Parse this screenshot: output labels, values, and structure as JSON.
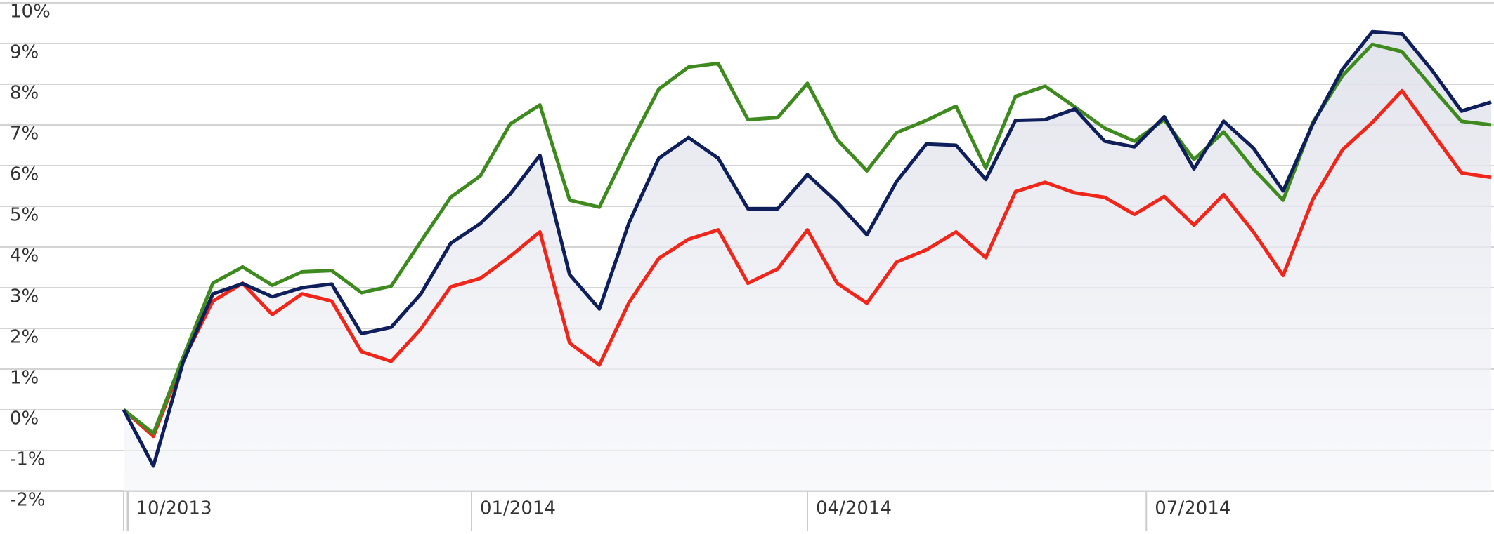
{
  "chart_data": {
    "type": "line",
    "x": [
      0,
      1,
      2,
      3,
      4,
      5,
      6,
      7,
      8,
      9,
      10,
      11,
      12,
      13,
      14,
      15,
      16,
      17,
      18,
      19,
      20,
      21,
      22,
      23,
      24,
      25,
      26,
      27,
      28,
      29,
      30,
      31,
      32,
      33,
      34,
      35,
      36,
      37,
      38,
      39,
      40,
      41,
      42,
      43,
      44,
      45,
      46
    ],
    "xlim": [
      0,
      46
    ],
    "xticks": [
      {
        "value": 0.13,
        "label": "10/2013"
      },
      {
        "value": 11.7,
        "label": "01/2014"
      },
      {
        "value": 23.0,
        "label": "04/2014"
      },
      {
        "value": 34.4,
        "label": "07/2014"
      }
    ],
    "ylim": [
      -2,
      10
    ],
    "yticks": [
      {
        "value": -2,
        "label": "-2%"
      },
      {
        "value": -1,
        "label": "-1%"
      },
      {
        "value": 0,
        "label": "0%"
      },
      {
        "value": 1,
        "label": "1%"
      },
      {
        "value": 2,
        "label": "2%"
      },
      {
        "value": 3,
        "label": "3%"
      },
      {
        "value": 4,
        "label": "4%"
      },
      {
        "value": 5,
        "label": "5%"
      },
      {
        "value": 6,
        "label": "6%"
      },
      {
        "value": 7,
        "label": "7%"
      },
      {
        "value": 8,
        "label": "8%"
      },
      {
        "value": 9,
        "label": "9%"
      },
      {
        "value": 10,
        "label": "10%"
      }
    ],
    "grid": true,
    "series": [
      {
        "color": "#0f1f5c",
        "area": true,
        "values": [
          0,
          -1.38,
          1.17,
          2.85,
          3.1,
          2.78,
          3.0,
          3.09,
          1.87,
          2.03,
          2.85,
          4.09,
          4.58,
          5.3,
          6.25,
          3.32,
          2.48,
          4.6,
          6.18,
          6.69,
          6.18,
          4.94,
          4.94,
          5.78,
          5.1,
          4.3,
          5.61,
          6.53,
          6.5,
          5.66,
          7.11,
          7.13,
          7.39,
          6.6,
          6.46,
          7.2,
          5.92,
          7.09,
          6.43,
          5.38,
          7.02,
          8.37,
          9.29,
          9.24,
          8.35,
          7.34,
          7.56
        ]
      },
      {
        "color": "#3e8a1e",
        "values": [
          0,
          -0.58,
          1.29,
          3.11,
          3.51,
          3.06,
          3.39,
          3.42,
          2.88,
          3.04,
          4.14,
          5.22,
          5.75,
          7.02,
          7.49,
          5.15,
          4.98,
          6.48,
          7.88,
          8.42,
          8.51,
          7.13,
          7.18,
          8.02,
          6.64,
          5.87,
          6.81,
          7.11,
          7.46,
          5.94,
          7.7,
          7.95,
          7.44,
          6.92,
          6.6,
          7.13,
          6.15,
          6.83,
          5.92,
          5.15,
          7.06,
          8.21,
          8.98,
          8.8,
          7.93,
          7.09,
          7.0
        ]
      },
      {
        "color": "#f0261b",
        "values": [
          0,
          -0.65,
          1.22,
          2.67,
          3.11,
          2.34,
          2.85,
          2.67,
          1.43,
          1.19,
          1.99,
          3.02,
          3.23,
          3.77,
          4.37,
          1.64,
          1.1,
          2.64,
          3.72,
          4.19,
          4.42,
          3.11,
          3.46,
          4.42,
          3.11,
          2.62,
          3.63,
          3.93,
          4.37,
          3.74,
          5.36,
          5.59,
          5.33,
          5.22,
          4.8,
          5.24,
          4.54,
          5.29,
          4.37,
          3.3,
          5.17,
          6.39,
          7.06,
          7.84,
          6.83,
          5.82,
          5.71
        ]
      }
    ]
  }
}
